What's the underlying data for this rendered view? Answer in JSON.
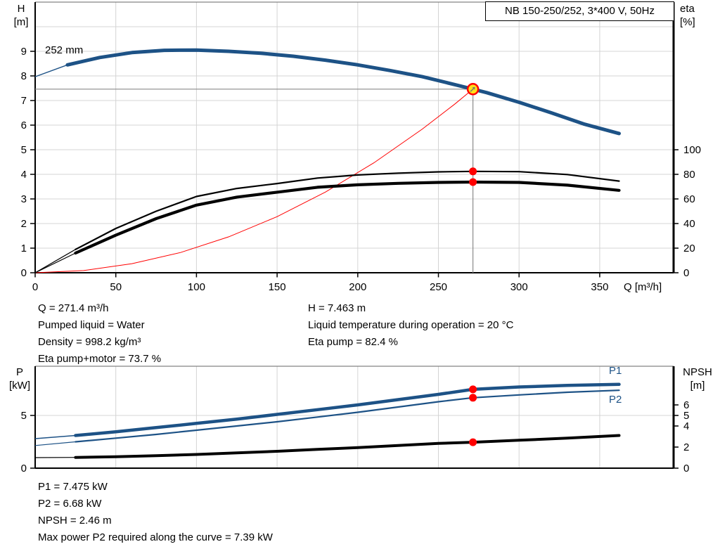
{
  "title_box": {
    "label": "NB 150-250/252, 3*400 V, 50Hz"
  },
  "colors": {
    "blue": "#1d5286",
    "red": "#ff0000",
    "yellow": "#ffe11a",
    "black": "#000000",
    "grid": "#d4d4d4",
    "crosshair": "#8a8a8a",
    "frame": "#666666",
    "text": "#000000"
  },
  "chart_data": [
    {
      "name": "head-efficiency-chart",
      "type": "line",
      "x_title": "Q [m³/h]",
      "y_left_title": [
        "H",
        "[m]"
      ],
      "y_right_title": [
        "eta",
        "[%]"
      ],
      "curve_label": "252 mm",
      "x_range": [
        0,
        395.8
      ],
      "y_left_range": [
        0,
        11
      ],
      "y_right_range": [
        0,
        220
      ],
      "x_ticks": [
        0,
        50,
        100,
        150,
        200,
        250,
        300,
        350
      ],
      "y_left_ticks": [
        0,
        1,
        2,
        3,
        4,
        5,
        6,
        7,
        8,
        9
      ],
      "y_left_gridlines": [
        1,
        2,
        3,
        4,
        5,
        6,
        7,
        8,
        9,
        10
      ],
      "y_right_ticks": [
        0,
        20,
        40,
        60,
        80,
        100
      ],
      "duty_point": {
        "q": 271.4,
        "value": 7.463,
        "axis": "left"
      },
      "series": [
        {
          "name": "system-curve",
          "label": "",
          "axis": "left",
          "color": "red",
          "thin": 1,
          "thick": 1,
          "thick_from": 999,
          "q": [
            0,
            30,
            60,
            90,
            120,
            150,
            180,
            210,
            240,
            260,
            271.4
          ],
          "values": [
            0,
            0.09,
            0.37,
            0.82,
            1.46,
            2.28,
            3.28,
            4.47,
            5.84,
            6.85,
            7.463
          ]
        },
        {
          "name": "head-252mm",
          "label": "252 mm",
          "axis": "left",
          "color": "blue",
          "thin": 1.4,
          "thick": 5,
          "thick_from": 24,
          "q": [
            0,
            20,
            40,
            60,
            80,
            100,
            120,
            140,
            160,
            180,
            200,
            220,
            240,
            260,
            271.4,
            280,
            300,
            320,
            340,
            362
          ],
          "values": [
            7.97,
            8.45,
            8.75,
            8.95,
            9.04,
            9.05,
            9.0,
            8.92,
            8.8,
            8.64,
            8.45,
            8.22,
            7.97,
            7.65,
            7.463,
            7.32,
            6.93,
            6.5,
            6.05,
            5.66
          ]
        },
        {
          "name": "eta-pump-curve",
          "label": "",
          "axis": "right",
          "color": "black",
          "thin": 1.2,
          "thick": 2.2,
          "thick_from": 24,
          "q": [
            0,
            25,
            50,
            75,
            100,
            125,
            150,
            175,
            200,
            225,
            250,
            271.4,
            300,
            330,
            362
          ],
          "values": [
            0,
            19,
            36,
            50,
            62,
            68.5,
            72.5,
            77,
            79.5,
            81,
            82,
            82.4,
            82.2,
            79.8,
            74.5
          ]
        },
        {
          "name": "eta-pump-motor-curve",
          "label": "",
          "axis": "right",
          "color": "black",
          "thin": 1.2,
          "thick": 4.2,
          "thick_from": 24,
          "q": [
            0,
            25,
            50,
            75,
            100,
            125,
            150,
            175,
            200,
            225,
            250,
            271.4,
            300,
            330,
            362
          ],
          "values": [
            0,
            16,
            30.5,
            44,
            55,
            61.5,
            65.5,
            69.5,
            71.5,
            72.7,
            73.4,
            73.7,
            73.4,
            71.2,
            67
          ]
        }
      ],
      "markers": [
        {
          "name": "eta-pump-point",
          "q": 271.4,
          "value": 82.4,
          "axis": "right",
          "style": "dot"
        },
        {
          "name": "eta-pump-motor-point",
          "q": 271.4,
          "value": 73.7,
          "axis": "right",
          "style": "dot"
        }
      ]
    },
    {
      "name": "power-npsh-chart",
      "type": "line",
      "x_title": "",
      "y_left_title": [
        "P",
        "[kW]"
      ],
      "y_right_title": [
        "NPSH",
        "[m]"
      ],
      "x_range": [
        0,
        395.8
      ],
      "y_left_range": [
        0,
        9.667
      ],
      "y_right_range": [
        0,
        9.667
      ],
      "x_gridlines": [
        50,
        100,
        150,
        200,
        250,
        300,
        350
      ],
      "y_left_ticks": [
        0,
        5
      ],
      "y_left_gridlines": [
        5
      ],
      "y_right_ticks": [
        0,
        2,
        4,
        5,
        6
      ],
      "series": [
        {
          "name": "p1-curve",
          "label": "P1",
          "axis": "left",
          "color": "blue",
          "thin": 1.4,
          "thick": 4.5,
          "thick_from": 24,
          "q": [
            0,
            25,
            50,
            75,
            100,
            125,
            150,
            175,
            200,
            225,
            250,
            271.4,
            300,
            330,
            362
          ],
          "values": [
            2.8,
            3.1,
            3.45,
            3.85,
            4.25,
            4.65,
            5.1,
            5.55,
            6.0,
            6.5,
            7.0,
            7.475,
            7.7,
            7.85,
            7.95
          ]
        },
        {
          "name": "p2-curve",
          "label": "P2",
          "axis": "left",
          "color": "blue",
          "thin": 1.2,
          "thick": 2.2,
          "thick_from": 24,
          "q": [
            0,
            25,
            50,
            75,
            100,
            125,
            150,
            175,
            200,
            225,
            250,
            271.4,
            300,
            330,
            362
          ],
          "values": [
            2.15,
            2.5,
            2.85,
            3.2,
            3.6,
            4.0,
            4.4,
            4.85,
            5.3,
            5.8,
            6.3,
            6.68,
            6.95,
            7.2,
            7.39
          ]
        },
        {
          "name": "npsh-curve",
          "label": "NPSH",
          "axis": "right",
          "color": "black",
          "thin": 1.2,
          "thick": 4,
          "thick_from": 24,
          "q": [
            0,
            25,
            50,
            75,
            100,
            125,
            150,
            175,
            200,
            225,
            250,
            271.4,
            300,
            330,
            362
          ],
          "values": [
            1.0,
            1.02,
            1.08,
            1.18,
            1.3,
            1.45,
            1.6,
            1.78,
            1.95,
            2.15,
            2.35,
            2.46,
            2.65,
            2.85,
            3.1
          ]
        }
      ],
      "markers": [
        {
          "name": "p1-point",
          "q": 271.4,
          "value": 7.475,
          "axis": "left",
          "style": "dot"
        },
        {
          "name": "p2-point",
          "q": 271.4,
          "value": 6.68,
          "axis": "left",
          "style": "dot"
        },
        {
          "name": "npsh-point",
          "q": 271.4,
          "value": 2.46,
          "axis": "right",
          "style": "dot"
        }
      ]
    }
  ],
  "info_block_1": {
    "left": [
      "Q = 271.4 m³/h",
      "Pumped liquid = Water",
      "Density = 998.2 kg/m³",
      "Eta pump+motor = 73.7 %"
    ],
    "right": [
      "H = 7.463 m",
      "Liquid temperature during operation = 20 °C",
      "Eta pump = 82.4 %"
    ]
  },
  "info_block_2": {
    "lines": [
      "P1 = 7.475 kW",
      "P2 = 6.68 kW",
      "NPSH = 2.46 m",
      "Max power P2 required along the curve = 7.39 kW"
    ]
  }
}
